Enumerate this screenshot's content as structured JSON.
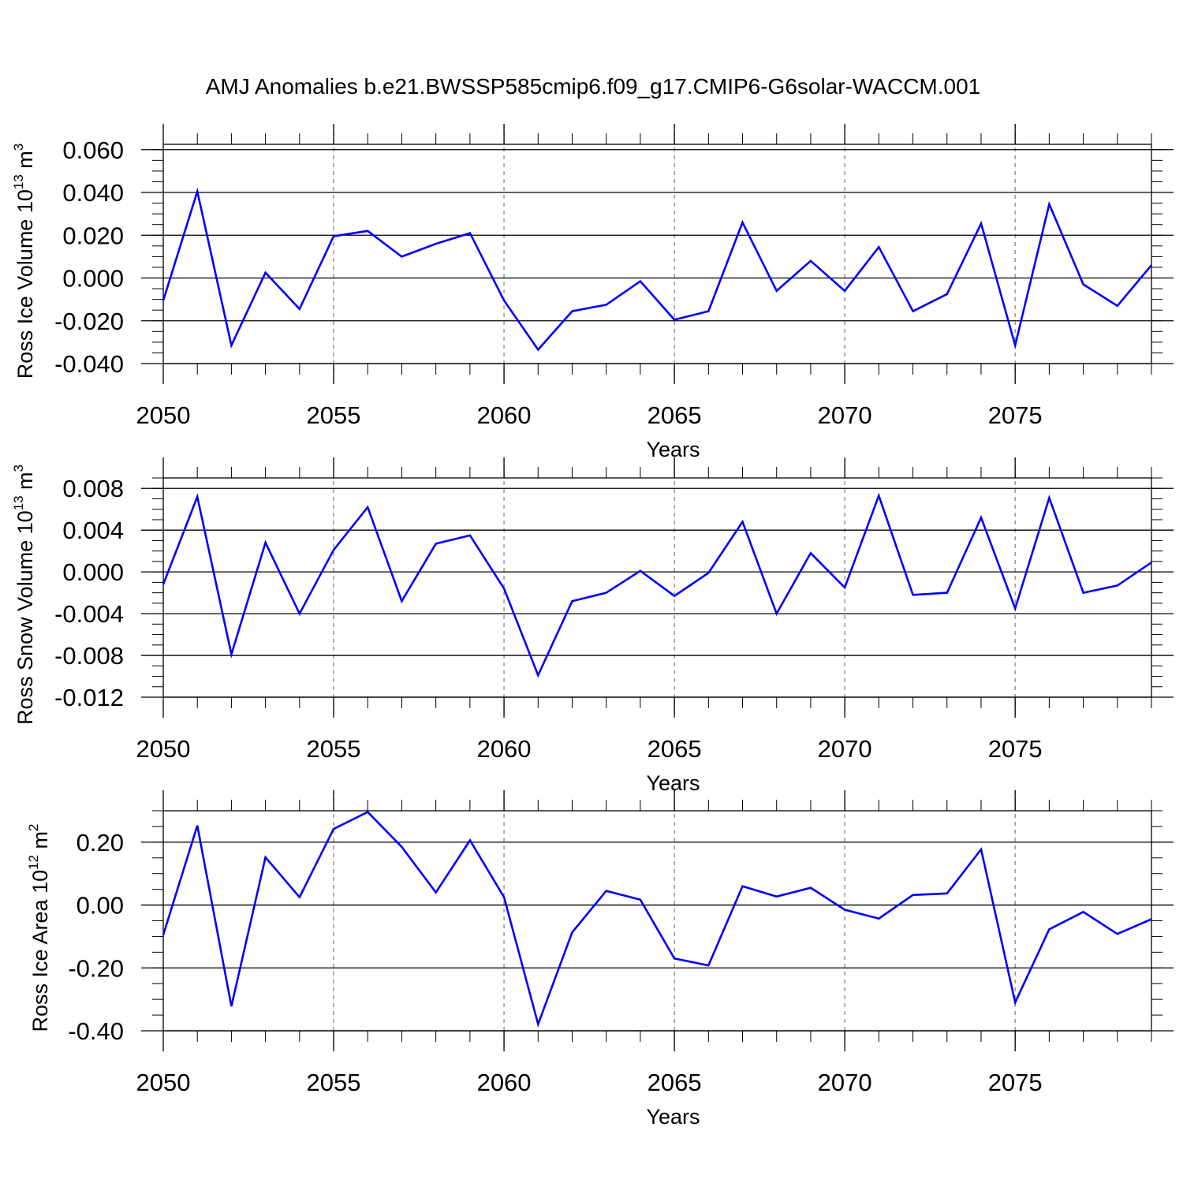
{
  "figure_title": "AMJ Anomalies b.e21.BWSSP585cmip6.f09_g17.CMIP6-G6solar-WACCM.001",
  "colors": {
    "line": "#0000ff",
    "axis": "#000000",
    "grid": "#888888"
  },
  "chart_data": [
    {
      "type": "line",
      "ylabel": {
        "text": "Ross Ice Volume 10",
        "sup1": "13",
        "mid": " m",
        "sup2": "3"
      },
      "xlabel": "Years",
      "xlim": [
        2050,
        2079
      ],
      "ylim": [
        -0.04,
        0.0625
      ],
      "yticks": [
        -0.04,
        -0.02,
        0.0,
        0.02,
        0.04,
        0.06
      ],
      "yticklabels": [
        "-0.040",
        "-0.020",
        "0.000",
        "0.020",
        "0.040",
        "0.060"
      ],
      "yminor": 0.005,
      "xticks": [
        2050,
        2055,
        2060,
        2065,
        2070,
        2075
      ],
      "xticklabels": [
        "2050",
        "2055",
        "2060",
        "2065",
        "2070",
        "2075"
      ],
      "vlines": [
        2055,
        2060,
        2065,
        2070,
        2075
      ],
      "x": [
        2050,
        2051,
        2052,
        2053,
        2054,
        2055,
        2056,
        2057,
        2058,
        2059,
        2060,
        2061,
        2062,
        2063,
        2064,
        2065,
        2066,
        2067,
        2068,
        2069,
        2070,
        2071,
        2072,
        2073,
        2074,
        2075,
        2076,
        2077,
        2078,
        2079
      ],
      "series": [
        {
          "name": "Ross Ice Volume",
          "values": [
            -0.0105,
            0.0405,
            -0.0315,
            0.0025,
            -0.0145,
            0.0195,
            0.022,
            0.01,
            0.016,
            0.021,
            -0.0105,
            -0.0335,
            -0.0155,
            -0.0125,
            -0.0015,
            -0.0195,
            -0.0155,
            0.026,
            -0.006,
            0.008,
            -0.006,
            0.0145,
            -0.0155,
            -0.0075,
            0.0255,
            -0.0315,
            0.0345,
            -0.003,
            -0.013,
            0.006
          ]
        }
      ]
    },
    {
      "type": "line",
      "ylabel": {
        "text": "Ross Snow Volume 10",
        "sup1": "13",
        "mid": " m",
        "sup2": "3"
      },
      "xlabel": "Years",
      "xlim": [
        2050,
        2079
      ],
      "ylim": [
        -0.012,
        0.009
      ],
      "yticks": [
        -0.012,
        -0.008,
        -0.004,
        0.0,
        0.004,
        0.008
      ],
      "yticklabels": [
        "-0.012",
        "-0.008",
        "-0.004",
        "0.000",
        "0.004",
        "0.008"
      ],
      "yminor": 0.001,
      "xticks": [
        2050,
        2055,
        2060,
        2065,
        2070,
        2075
      ],
      "xticklabels": [
        "2050",
        "2055",
        "2060",
        "2065",
        "2070",
        "2075"
      ],
      "vlines": [
        2055,
        2060,
        2065,
        2070,
        2075
      ],
      "x": [
        2050,
        2051,
        2052,
        2053,
        2054,
        2055,
        2056,
        2057,
        2058,
        2059,
        2060,
        2061,
        2062,
        2063,
        2064,
        2065,
        2066,
        2067,
        2068,
        2069,
        2070,
        2071,
        2072,
        2073,
        2074,
        2075,
        2076,
        2077,
        2078,
        2079
      ],
      "series": [
        {
          "name": "Ross Snow Volume",
          "values": [
            -0.0012,
            0.0072,
            -0.0079,
            0.0028,
            -0.004,
            0.0021,
            0.0062,
            -0.0028,
            0.0027,
            0.0035,
            -0.0016,
            -0.0099,
            -0.0028,
            -0.002,
            0.0001,
            -0.0023,
            -0.0001,
            0.0048,
            -0.004,
            0.0018,
            -0.0015,
            0.0073,
            -0.0022,
            -0.002,
            0.0052,
            -0.0035,
            0.0071,
            -0.002,
            -0.0013,
            0.0009
          ]
        }
      ]
    },
    {
      "type": "line",
      "ylabel": {
        "text": "Ross Ice Area 10",
        "sup1": "12",
        "mid": " m",
        "sup2": "2"
      },
      "xlabel": "Years",
      "xlim": [
        2050,
        2079
      ],
      "ylim": [
        -0.4,
        0.3
      ],
      "yticks": [
        -0.4,
        -0.2,
        0.0,
        0.2
      ],
      "yticklabels": [
        "-0.40",
        "-0.20",
        "0.00",
        "0.20"
      ],
      "yminor": 0.05,
      "xticks": [
        2050,
        2055,
        2060,
        2065,
        2070,
        2075
      ],
      "xticklabels": [
        "2050",
        "2055",
        "2060",
        "2065",
        "2070",
        "2075"
      ],
      "vlines": [
        2055,
        2060,
        2065,
        2070,
        2075
      ],
      "x": [
        2050,
        2051,
        2052,
        2053,
        2054,
        2055,
        2056,
        2057,
        2058,
        2059,
        2060,
        2061,
        2062,
        2063,
        2064,
        2065,
        2066,
        2067,
        2068,
        2069,
        2070,
        2071,
        2072,
        2073,
        2074,
        2075,
        2076,
        2077,
        2078,
        2079
      ],
      "series": [
        {
          "name": "Ross Ice Area",
          "values": [
            -0.095,
            0.253,
            -0.322,
            0.152,
            0.025,
            0.242,
            0.296,
            0.185,
            0.04,
            0.206,
            0.025,
            -0.379,
            -0.087,
            0.045,
            0.017,
            -0.17,
            -0.192,
            0.06,
            0.027,
            0.055,
            -0.015,
            -0.043,
            0.032,
            0.037,
            0.177,
            -0.31,
            -0.077,
            -0.022,
            -0.092,
            -0.045
          ]
        }
      ]
    }
  ]
}
